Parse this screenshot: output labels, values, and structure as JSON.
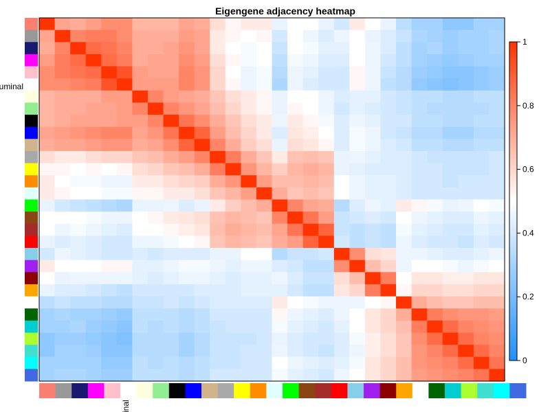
{
  "chart_data": {
    "type": "heatmap",
    "title": "Eigengene adjacency heatmap",
    "modules": [
      "salmon",
      "grey60",
      "midnightblue",
      "magenta",
      "pink",
      "luminal",
      "lightyellow",
      "lightgreen",
      "black",
      "blue",
      "tan",
      "darkgrey",
      "yellow",
      "darkorange",
      "lightcyan",
      "green",
      "saddlebrown",
      "brown",
      "red",
      "skyblue",
      "purple",
      "darkred",
      "orange",
      "white",
      "darkgreen",
      "darkturquoise",
      "greenyellow",
      "turquoise",
      "cyan",
      "royalblue"
    ],
    "module_colors": [
      "#FA8072",
      "#999999",
      "#191970",
      "#FF00FF",
      "#FFC0CB",
      "#FFFFFF",
      "#FFFFE0",
      "#90EE90",
      "#000000",
      "#0000FF",
      "#D2B48C",
      "#A9A9A9",
      "#FFFF00",
      "#FF8C00",
      "#E0FFFF",
      "#00FF00",
      "#8B4513",
      "#A52A2A",
      "#FF0000",
      "#87CEEB",
      "#A020F0",
      "#8B0000",
      "#FFA500",
      "#FFFFFF",
      "#006400",
      "#00CED1",
      "#ADFF2F",
      "#40E0D0",
      "#00FFFF",
      "#4169E1"
    ],
    "visible_row_label": "uminal",
    "visible_col_label": "inal",
    "label_index": 5,
    "colorbar": {
      "ticks": [
        "0",
        "0.2",
        "0.4",
        "0.6",
        "0.8",
        "1"
      ],
      "tick_values": [
        0,
        0.2,
        0.4,
        0.6,
        0.8,
        1.0
      ],
      "range": [
        0,
        1
      ],
      "colors": [
        "#1E90FF",
        "#FFFFFF",
        "#FF3300"
      ]
    },
    "values": [
      [
        1.0,
        0.72,
        0.7,
        0.74,
        0.78,
        0.78,
        0.68,
        0.68,
        0.68,
        0.72,
        0.7,
        0.58,
        0.52,
        0.55,
        0.55,
        0.45,
        0.5,
        0.5,
        0.45,
        0.4,
        0.55,
        0.5,
        0.45,
        0.35,
        0.3,
        0.3,
        0.25,
        0.25,
        0.3,
        0.3
      ],
      [
        0.72,
        1.0,
        0.8,
        0.82,
        0.82,
        0.78,
        0.7,
        0.7,
        0.7,
        0.74,
        0.72,
        0.55,
        0.52,
        0.5,
        0.52,
        0.4,
        0.5,
        0.46,
        0.42,
        0.46,
        0.5,
        0.45,
        0.42,
        0.38,
        0.32,
        0.3,
        0.28,
        0.3,
        0.3,
        0.32
      ],
      [
        0.7,
        0.8,
        1.0,
        0.86,
        0.84,
        0.8,
        0.7,
        0.7,
        0.72,
        0.76,
        0.72,
        0.55,
        0.5,
        0.48,
        0.5,
        0.38,
        0.5,
        0.48,
        0.44,
        0.44,
        0.5,
        0.46,
        0.42,
        0.36,
        0.3,
        0.32,
        0.28,
        0.3,
        0.3,
        0.32
      ],
      [
        0.74,
        0.82,
        0.86,
        1.0,
        0.86,
        0.82,
        0.7,
        0.72,
        0.72,
        0.78,
        0.74,
        0.58,
        0.52,
        0.48,
        0.5,
        0.36,
        0.48,
        0.46,
        0.42,
        0.42,
        0.5,
        0.46,
        0.4,
        0.36,
        0.3,
        0.28,
        0.26,
        0.28,
        0.3,
        0.3
      ],
      [
        0.78,
        0.82,
        0.84,
        0.86,
        1.0,
        0.92,
        0.74,
        0.72,
        0.72,
        0.8,
        0.76,
        0.6,
        0.5,
        0.46,
        0.48,
        0.34,
        0.46,
        0.44,
        0.4,
        0.4,
        0.52,
        0.46,
        0.38,
        0.34,
        0.28,
        0.26,
        0.24,
        0.24,
        0.26,
        0.28
      ],
      [
        0.78,
        0.78,
        0.8,
        0.82,
        0.92,
        1.0,
        0.74,
        0.74,
        0.74,
        0.8,
        0.76,
        0.6,
        0.52,
        0.46,
        0.48,
        0.32,
        0.46,
        0.42,
        0.4,
        0.4,
        0.52,
        0.46,
        0.36,
        0.34,
        0.26,
        0.24,
        0.22,
        0.24,
        0.26,
        0.28
      ],
      [
        0.68,
        0.7,
        0.7,
        0.7,
        0.74,
        0.74,
        1.0,
        0.8,
        0.74,
        0.72,
        0.7,
        0.64,
        0.58,
        0.55,
        0.52,
        0.45,
        0.5,
        0.5,
        0.46,
        0.42,
        0.44,
        0.44,
        0.4,
        0.38,
        0.36,
        0.36,
        0.34,
        0.34,
        0.36,
        0.36
      ],
      [
        0.68,
        0.7,
        0.7,
        0.72,
        0.72,
        0.74,
        0.8,
        1.0,
        0.8,
        0.76,
        0.72,
        0.66,
        0.6,
        0.55,
        0.52,
        0.45,
        0.52,
        0.5,
        0.46,
        0.4,
        0.44,
        0.42,
        0.4,
        0.38,
        0.36,
        0.34,
        0.34,
        0.34,
        0.34,
        0.36
      ],
      [
        0.68,
        0.7,
        0.72,
        0.72,
        0.72,
        0.74,
        0.74,
        0.8,
        1.0,
        0.84,
        0.78,
        0.7,
        0.64,
        0.58,
        0.55,
        0.46,
        0.55,
        0.52,
        0.48,
        0.42,
        0.46,
        0.44,
        0.4,
        0.4,
        0.36,
        0.36,
        0.34,
        0.34,
        0.36,
        0.36
      ],
      [
        0.72,
        0.74,
        0.76,
        0.78,
        0.8,
        0.8,
        0.72,
        0.76,
        0.84,
        1.0,
        0.88,
        0.74,
        0.66,
        0.6,
        0.55,
        0.42,
        0.56,
        0.54,
        0.5,
        0.42,
        0.48,
        0.46,
        0.4,
        0.38,
        0.34,
        0.34,
        0.3,
        0.3,
        0.34,
        0.34
      ],
      [
        0.7,
        0.72,
        0.72,
        0.74,
        0.76,
        0.76,
        0.7,
        0.72,
        0.78,
        0.88,
        1.0,
        0.8,
        0.7,
        0.62,
        0.58,
        0.45,
        0.58,
        0.56,
        0.52,
        0.42,
        0.48,
        0.46,
        0.42,
        0.4,
        0.36,
        0.36,
        0.34,
        0.34,
        0.36,
        0.36
      ],
      [
        0.58,
        0.55,
        0.55,
        0.58,
        0.6,
        0.6,
        0.64,
        0.66,
        0.7,
        0.74,
        0.8,
        1.0,
        0.82,
        0.7,
        0.64,
        0.55,
        0.65,
        0.66,
        0.64,
        0.45,
        0.46,
        0.44,
        0.42,
        0.42,
        0.4,
        0.38,
        0.38,
        0.38,
        0.38,
        0.4
      ],
      [
        0.52,
        0.52,
        0.5,
        0.52,
        0.5,
        0.52,
        0.58,
        0.6,
        0.64,
        0.66,
        0.7,
        0.82,
        1.0,
        0.76,
        0.68,
        0.62,
        0.68,
        0.7,
        0.68,
        0.45,
        0.44,
        0.42,
        0.42,
        0.42,
        0.4,
        0.4,
        0.38,
        0.38,
        0.38,
        0.4
      ],
      [
        0.55,
        0.5,
        0.48,
        0.48,
        0.46,
        0.46,
        0.55,
        0.55,
        0.58,
        0.6,
        0.62,
        0.7,
        0.76,
        1.0,
        0.74,
        0.66,
        0.66,
        0.68,
        0.66,
        0.5,
        0.46,
        0.44,
        0.44,
        0.42,
        0.4,
        0.4,
        0.38,
        0.4,
        0.4,
        0.4
      ],
      [
        0.55,
        0.52,
        0.5,
        0.5,
        0.48,
        0.48,
        0.52,
        0.52,
        0.55,
        0.55,
        0.58,
        0.64,
        0.68,
        0.74,
        1.0,
        0.7,
        0.64,
        0.66,
        0.64,
        0.5,
        0.46,
        0.44,
        0.44,
        0.42,
        0.4,
        0.4,
        0.4,
        0.4,
        0.4,
        0.4
      ],
      [
        0.45,
        0.4,
        0.38,
        0.36,
        0.34,
        0.32,
        0.45,
        0.45,
        0.46,
        0.42,
        0.45,
        0.55,
        0.62,
        0.66,
        0.7,
        1.0,
        0.8,
        0.72,
        0.7,
        0.34,
        0.42,
        0.46,
        0.44,
        0.55,
        0.52,
        0.48,
        0.45,
        0.46,
        0.5,
        0.48
      ],
      [
        0.5,
        0.5,
        0.5,
        0.48,
        0.46,
        0.46,
        0.5,
        0.52,
        0.55,
        0.56,
        0.58,
        0.65,
        0.68,
        0.66,
        0.64,
        0.8,
        1.0,
        0.84,
        0.74,
        0.38,
        0.4,
        0.42,
        0.4,
        0.5,
        0.46,
        0.44,
        0.42,
        0.42,
        0.46,
        0.44
      ],
      [
        0.5,
        0.46,
        0.48,
        0.46,
        0.44,
        0.42,
        0.5,
        0.5,
        0.52,
        0.54,
        0.56,
        0.66,
        0.7,
        0.68,
        0.66,
        0.72,
        0.84,
        1.0,
        0.88,
        0.38,
        0.36,
        0.38,
        0.36,
        0.48,
        0.44,
        0.42,
        0.4,
        0.4,
        0.44,
        0.42
      ],
      [
        0.45,
        0.42,
        0.44,
        0.42,
        0.4,
        0.4,
        0.46,
        0.46,
        0.48,
        0.5,
        0.52,
        0.64,
        0.68,
        0.66,
        0.64,
        0.7,
        0.74,
        0.88,
        1.0,
        0.4,
        0.36,
        0.38,
        0.36,
        0.46,
        0.42,
        0.4,
        0.4,
        0.38,
        0.42,
        0.4
      ],
      [
        0.4,
        0.46,
        0.44,
        0.42,
        0.4,
        0.4,
        0.42,
        0.4,
        0.42,
        0.42,
        0.42,
        0.45,
        0.45,
        0.5,
        0.5,
        0.34,
        0.38,
        0.38,
        0.4,
        1.0,
        0.78,
        0.58,
        0.56,
        0.46,
        0.46,
        0.44,
        0.42,
        0.42,
        0.44,
        0.46
      ],
      [
        0.55,
        0.5,
        0.5,
        0.5,
        0.52,
        0.52,
        0.44,
        0.44,
        0.46,
        0.48,
        0.48,
        0.46,
        0.44,
        0.46,
        0.46,
        0.42,
        0.4,
        0.36,
        0.36,
        0.78,
        1.0,
        0.66,
        0.6,
        0.46,
        0.5,
        0.5,
        0.48,
        0.46,
        0.48,
        0.5
      ],
      [
        0.5,
        0.45,
        0.46,
        0.46,
        0.46,
        0.46,
        0.44,
        0.42,
        0.44,
        0.46,
        0.46,
        0.44,
        0.42,
        0.44,
        0.44,
        0.46,
        0.42,
        0.38,
        0.38,
        0.58,
        0.66,
        1.0,
        0.82,
        0.5,
        0.56,
        0.56,
        0.54,
        0.54,
        0.56,
        0.56
      ],
      [
        0.45,
        0.42,
        0.42,
        0.4,
        0.38,
        0.36,
        0.4,
        0.4,
        0.4,
        0.4,
        0.42,
        0.42,
        0.42,
        0.44,
        0.44,
        0.44,
        0.4,
        0.36,
        0.36,
        0.56,
        0.6,
        0.82,
        1.0,
        0.52,
        0.6,
        0.6,
        0.58,
        0.58,
        0.6,
        0.6
      ],
      [
        0.35,
        0.38,
        0.36,
        0.36,
        0.34,
        0.34,
        0.38,
        0.38,
        0.4,
        0.38,
        0.4,
        0.42,
        0.42,
        0.42,
        0.42,
        0.55,
        0.5,
        0.48,
        0.46,
        0.46,
        0.46,
        0.5,
        0.52,
        1.0,
        0.7,
        0.66,
        0.64,
        0.64,
        0.66,
        0.66
      ],
      [
        0.3,
        0.32,
        0.3,
        0.3,
        0.28,
        0.26,
        0.36,
        0.36,
        0.36,
        0.34,
        0.36,
        0.4,
        0.4,
        0.4,
        0.4,
        0.52,
        0.46,
        0.44,
        0.42,
        0.46,
        0.5,
        0.56,
        0.6,
        0.7,
        1.0,
        0.82,
        0.78,
        0.76,
        0.76,
        0.74
      ],
      [
        0.3,
        0.3,
        0.32,
        0.28,
        0.26,
        0.24,
        0.36,
        0.34,
        0.36,
        0.34,
        0.36,
        0.38,
        0.4,
        0.4,
        0.4,
        0.48,
        0.44,
        0.42,
        0.4,
        0.44,
        0.5,
        0.56,
        0.6,
        0.66,
        0.82,
        1.0,
        0.86,
        0.8,
        0.78,
        0.76
      ],
      [
        0.25,
        0.28,
        0.28,
        0.26,
        0.24,
        0.22,
        0.34,
        0.34,
        0.34,
        0.3,
        0.34,
        0.38,
        0.38,
        0.38,
        0.4,
        0.45,
        0.42,
        0.4,
        0.4,
        0.42,
        0.48,
        0.54,
        0.58,
        0.64,
        0.78,
        0.86,
        1.0,
        0.86,
        0.8,
        0.78
      ],
      [
        0.25,
        0.3,
        0.3,
        0.28,
        0.24,
        0.24,
        0.34,
        0.34,
        0.34,
        0.3,
        0.34,
        0.38,
        0.38,
        0.4,
        0.4,
        0.46,
        0.42,
        0.4,
        0.38,
        0.42,
        0.46,
        0.54,
        0.58,
        0.64,
        0.76,
        0.8,
        0.86,
        1.0,
        0.86,
        0.8
      ],
      [
        0.3,
        0.3,
        0.3,
        0.3,
        0.26,
        0.26,
        0.36,
        0.34,
        0.36,
        0.34,
        0.36,
        0.38,
        0.38,
        0.4,
        0.4,
        0.5,
        0.46,
        0.44,
        0.42,
        0.44,
        0.48,
        0.56,
        0.6,
        0.66,
        0.76,
        0.78,
        0.8,
        0.86,
        1.0,
        0.84
      ],
      [
        0.3,
        0.32,
        0.32,
        0.3,
        0.28,
        0.28,
        0.36,
        0.36,
        0.36,
        0.34,
        0.36,
        0.4,
        0.4,
        0.4,
        0.4,
        0.48,
        0.44,
        0.42,
        0.4,
        0.46,
        0.5,
        0.56,
        0.6,
        0.66,
        0.74,
        0.76,
        0.78,
        0.8,
        0.84,
        1.0
      ]
    ]
  }
}
